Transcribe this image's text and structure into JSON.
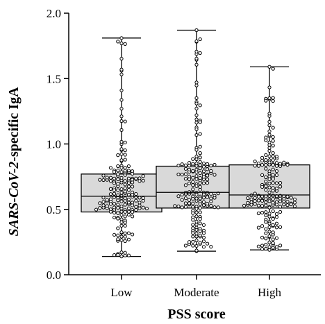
{
  "chart_data": {
    "type": "box",
    "title": "",
    "xlabel": "PSS score",
    "ylabel_italic": "SARS-CoV-2",
    "ylabel_rest": "-specific IgA",
    "ylim": [
      0,
      2.0
    ],
    "yticks": [
      "0.0",
      "0.5",
      "1.0",
      "1.5",
      "2.0"
    ],
    "ytick_values": [
      0,
      0.5,
      1.0,
      1.5,
      2.0
    ],
    "categories": [
      "Low",
      "Moderate",
      "High"
    ],
    "boxes": [
      {
        "category": "Low",
        "min": 0.14,
        "q1": 0.48,
        "median": 0.6,
        "q3": 0.77,
        "max": 1.81
      },
      {
        "category": "Moderate",
        "min": 0.18,
        "q1": 0.51,
        "median": 0.63,
        "q3": 0.83,
        "max": 1.87
      },
      {
        "category": "High",
        "min": 0.19,
        "q1": 0.51,
        "median": 0.61,
        "q3": 0.84,
        "max": 1.59
      }
    ],
    "points_per_group": 190,
    "box_fill": "#d9d9d9",
    "line_color": "#000000",
    "point_fill": "#ffffff"
  }
}
